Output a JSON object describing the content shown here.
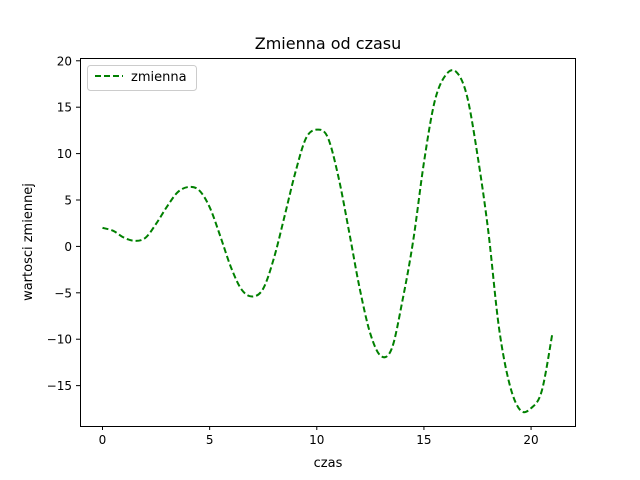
{
  "chart_data": {
    "type": "line",
    "title": "Zmienna od czasu",
    "xlabel": "czas",
    "ylabel": "wartosci zmiennej",
    "xlim": [
      -1.05,
      22.05
    ],
    "ylim": [
      -19.35,
      20.3
    ],
    "xticks": [
      0,
      5,
      10,
      15,
      20
    ],
    "xtick_labels": [
      "0",
      "5",
      "10",
      "15",
      "20"
    ],
    "yticks": [
      -15,
      -10,
      -5,
      0,
      5,
      10,
      15,
      20
    ],
    "ytick_labels": [
      "−15",
      "−10",
      "−5",
      "0",
      "5",
      "10",
      "15",
      "20"
    ],
    "grid": false,
    "legend_position": "top-left",
    "series": [
      {
        "name": "zmienna",
        "color": "#008000",
        "linestyle": "dashed",
        "x": [
          0.0,
          0.5,
          1.0,
          1.5,
          2.0,
          2.5,
          3.0,
          3.5,
          4.0,
          4.5,
          5.0,
          5.5,
          6.0,
          6.5,
          7.0,
          7.5,
          8.0,
          8.5,
          9.0,
          9.5,
          10.0,
          10.5,
          11.0,
          11.5,
          12.0,
          12.5,
          13.0,
          13.5,
          14.0,
          14.5,
          15.0,
          15.5,
          16.0,
          16.5,
          17.0,
          17.5,
          18.0,
          18.5,
          19.0,
          19.5,
          20.0,
          20.5,
          21.0
        ],
        "y": [
          2.0,
          1.68,
          0.95,
          0.6,
          0.92,
          2.43,
          4.25,
          5.82,
          6.4,
          6.07,
          4.23,
          1.08,
          -2.28,
          -4.68,
          -5.4,
          -4.55,
          -1.26,
          3.29,
          7.97,
          11.67,
          12.58,
          11.81,
          7.59,
          1.68,
          -4.5,
          -9.42,
          -11.82,
          -11.0,
          -5.81,
          0.63,
          9.04,
          15.61,
          18.41,
          18.82,
          16.29,
          9.83,
          1.7,
          -8.72,
          -14.88,
          -17.66,
          -17.43,
          -15.56,
          -9.3
        ]
      }
    ]
  }
}
